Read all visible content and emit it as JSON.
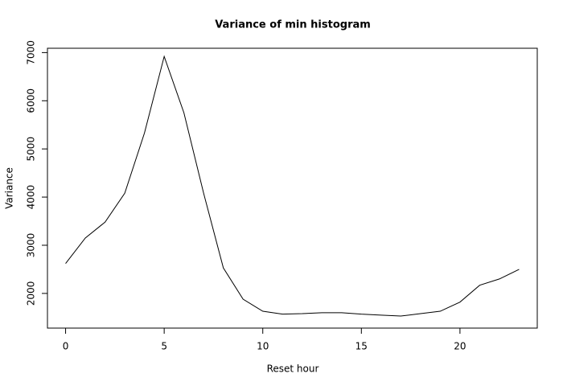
{
  "chart_data": {
    "type": "line",
    "title": "Variance of min histogram",
    "xlabel": "Reset hour",
    "ylabel": "Variance",
    "x": [
      0,
      1,
      2,
      3,
      4,
      5,
      6,
      7,
      8,
      9,
      10,
      11,
      12,
      13,
      14,
      15,
      16,
      17,
      18,
      19,
      20,
      21,
      22,
      23
    ],
    "series": [
      {
        "name": "Variance",
        "color": "#000000",
        "values": [
          2620,
          3150,
          3480,
          4080,
          5330,
          6920,
          5750,
          4080,
          2530,
          1880,
          1630,
          1570,
          1580,
          1600,
          1600,
          1570,
          1550,
          1530,
          1580,
          1630,
          1820,
          2170,
          2300,
          2500
        ]
      }
    ],
    "xlim": [
      -0.92,
      23.92
    ],
    "ylim": [
      1280,
      7090
    ],
    "xticks": [
      0,
      5,
      10,
      15,
      20
    ],
    "yticks": [
      2000,
      3000,
      4000,
      5000,
      6000,
      7000
    ]
  }
}
